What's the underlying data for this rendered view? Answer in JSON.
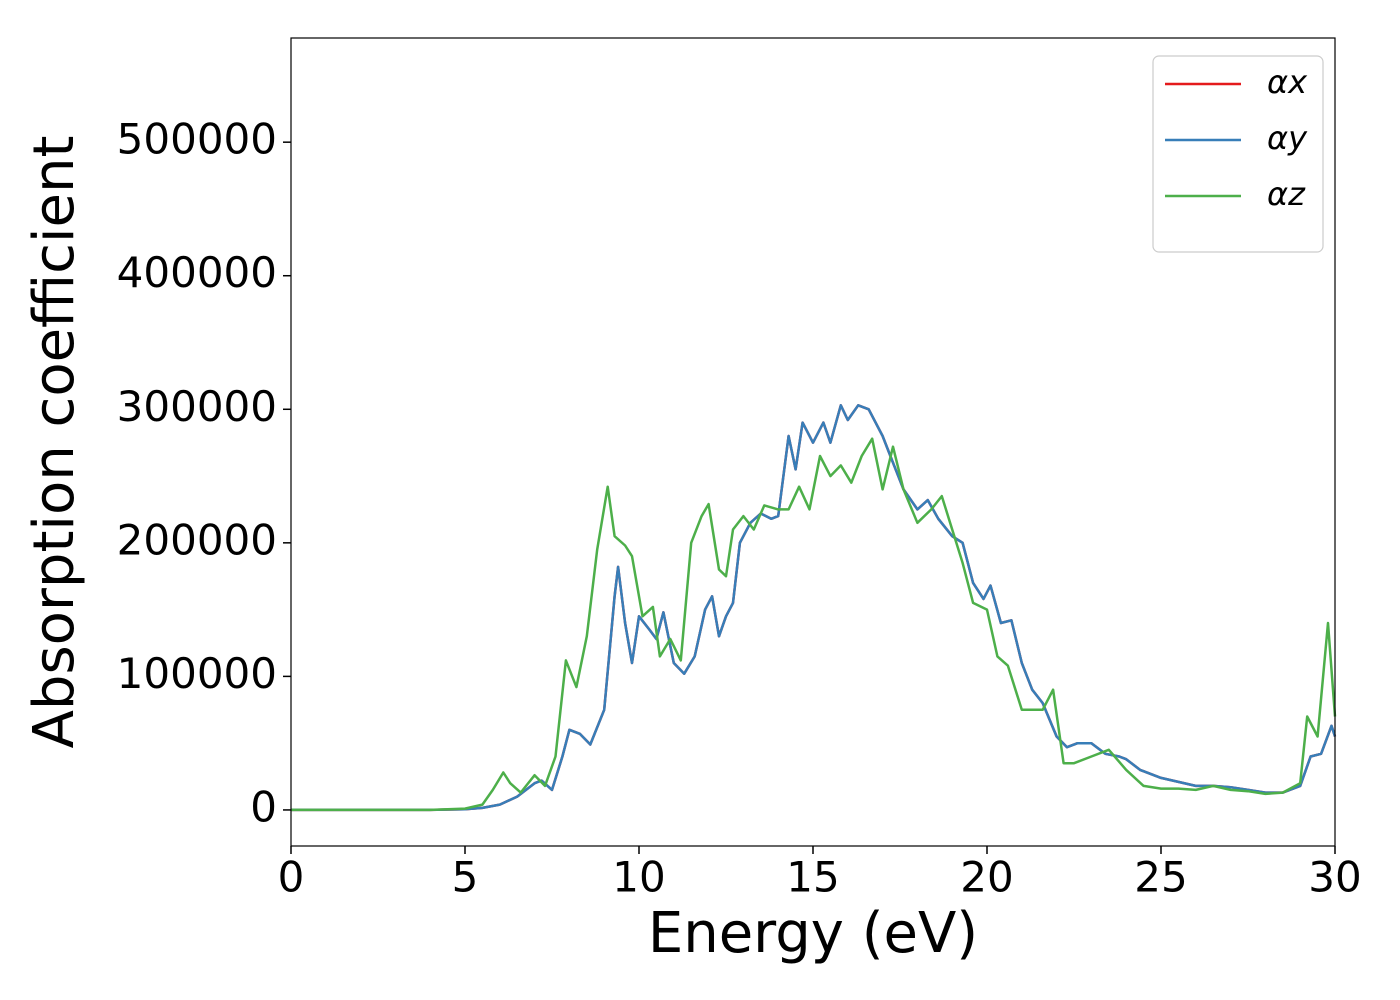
{
  "chart_data": {
    "type": "line",
    "xlabel": "Energy (eV)",
    "ylabel": "Absorption coefficient",
    "xlim": [
      0,
      30
    ],
    "xticks": [
      0,
      5,
      10,
      15,
      20,
      25,
      30
    ],
    "ylim": [
      -27000,
      578000
    ],
    "yticks": [
      0,
      100000,
      200000,
      300000,
      400000,
      500000
    ],
    "legend": "upper right",
    "grid": false,
    "series": [
      {
        "name": "αx",
        "color": "#e41a1c",
        "x": [
          0,
          1,
          2,
          3,
          4,
          5,
          5.5,
          6,
          6.5,
          7,
          7.2,
          7.5,
          7.8,
          8,
          8.3,
          8.6,
          9,
          9.3,
          9.4,
          9.6,
          9.8,
          10,
          10.3,
          10.5,
          10.7,
          11,
          11.3,
          11.6,
          11.9,
          12.1,
          12.3,
          12.5,
          12.7,
          12.9,
          13.2,
          13.5,
          13.8,
          14,
          14.3,
          14.5,
          14.7,
          15,
          15.3,
          15.5,
          15.8,
          16,
          16.3,
          16.6,
          17,
          17.3,
          17.6,
          18,
          18.3,
          18.6,
          19,
          19.3,
          19.6,
          19.9,
          20.1,
          20.4,
          20.7,
          21,
          21.3,
          21.6,
          22,
          22.3,
          22.6,
          23,
          23.4,
          23.8,
          24,
          24.4,
          25,
          25.5,
          26,
          26.5,
          27,
          27.5,
          28,
          28.5,
          29,
          29.3,
          29.6,
          29.9,
          30
        ],
        "values": [
          0,
          0,
          0,
          0,
          0,
          500,
          1500,
          4000,
          10000,
          20000,
          22000,
          15000,
          40000,
          60000,
          57000,
          49000,
          75000,
          160000,
          182000,
          140000,
          110000,
          145000,
          135000,
          128000,
          148000,
          110000,
          102000,
          115000,
          150000,
          160000,
          130000,
          145000,
          155000,
          200000,
          215000,
          222000,
          218000,
          220000,
          280000,
          255000,
          290000,
          275000,
          290000,
          275000,
          303000,
          292000,
          303000,
          300000,
          280000,
          260000,
          240000,
          225000,
          232000,
          218000,
          205000,
          200000,
          170000,
          158000,
          168000,
          140000,
          142000,
          110000,
          90000,
          80000,
          55000,
          47000,
          50000,
          50000,
          42000,
          40000,
          38000,
          30000,
          24000,
          21000,
          18000,
          18000,
          17000,
          15000,
          13000,
          13000,
          18000,
          40000,
          42000,
          63000,
          55000
        ]
      },
      {
        "name": "αy",
        "color": "#377eb8",
        "x": [
          0,
          1,
          2,
          3,
          4,
          5,
          5.5,
          6,
          6.5,
          7,
          7.2,
          7.5,
          7.8,
          8,
          8.3,
          8.6,
          9,
          9.3,
          9.4,
          9.6,
          9.8,
          10,
          10.3,
          10.5,
          10.7,
          11,
          11.3,
          11.6,
          11.9,
          12.1,
          12.3,
          12.5,
          12.7,
          12.9,
          13.2,
          13.5,
          13.8,
          14,
          14.3,
          14.5,
          14.7,
          15,
          15.3,
          15.5,
          15.8,
          16,
          16.3,
          16.6,
          17,
          17.3,
          17.6,
          18,
          18.3,
          18.6,
          19,
          19.3,
          19.6,
          19.9,
          20.1,
          20.4,
          20.7,
          21,
          21.3,
          21.6,
          22,
          22.3,
          22.6,
          23,
          23.4,
          23.8,
          24,
          24.4,
          25,
          25.5,
          26,
          26.5,
          27,
          27.5,
          28,
          28.5,
          29,
          29.3,
          29.6,
          29.9,
          30
        ],
        "values": [
          0,
          0,
          0,
          0,
          0,
          500,
          1500,
          4000,
          10000,
          20000,
          22000,
          15000,
          40000,
          60000,
          57000,
          49000,
          75000,
          160000,
          182000,
          140000,
          110000,
          145000,
          135000,
          128000,
          148000,
          110000,
          102000,
          115000,
          150000,
          160000,
          130000,
          145000,
          155000,
          200000,
          215000,
          222000,
          218000,
          220000,
          280000,
          255000,
          290000,
          275000,
          290000,
          275000,
          303000,
          292000,
          303000,
          300000,
          280000,
          260000,
          240000,
          225000,
          232000,
          218000,
          205000,
          200000,
          170000,
          158000,
          168000,
          140000,
          142000,
          110000,
          90000,
          80000,
          55000,
          47000,
          50000,
          50000,
          42000,
          40000,
          38000,
          30000,
          24000,
          21000,
          18000,
          18000,
          17000,
          15000,
          13000,
          13000,
          18000,
          40000,
          42000,
          63000,
          55000
        ]
      },
      {
        "name": "αz",
        "color": "#4daf4a",
        "x": [
          0,
          1,
          2,
          3,
          4,
          5,
          5.5,
          5.8,
          6.1,
          6.3,
          6.6,
          7,
          7.3,
          7.6,
          7.9,
          8.2,
          8.5,
          8.8,
          9.1,
          9.3,
          9.6,
          9.8,
          10.1,
          10.4,
          10.6,
          10.9,
          11.2,
          11.5,
          11.8,
          12,
          12.3,
          12.5,
          12.7,
          13,
          13.3,
          13.6,
          14,
          14.3,
          14.6,
          14.9,
          15.2,
          15.5,
          15.8,
          16.1,
          16.4,
          16.7,
          17,
          17.3,
          17.6,
          18,
          18.4,
          18.7,
          19,
          19.3,
          19.6,
          20,
          20.3,
          20.6,
          21,
          21.3,
          21.6,
          21.9,
          22.2,
          22.5,
          23,
          23.5,
          24,
          24.5,
          25,
          25.5,
          26,
          26.5,
          27,
          27.5,
          28,
          28.5,
          29,
          29.2,
          29.5,
          29.8,
          30
        ],
        "values": [
          0,
          0,
          0,
          0,
          0,
          1000,
          4000,
          15000,
          28000,
          20000,
          13000,
          26000,
          18000,
          40000,
          112000,
          92000,
          130000,
          195000,
          242000,
          205000,
          198000,
          190000,
          145000,
          152000,
          115000,
          128000,
          112000,
          200000,
          220000,
          229000,
          180000,
          175000,
          210000,
          220000,
          210000,
          228000,
          225000,
          225000,
          242000,
          225000,
          265000,
          250000,
          258000,
          245000,
          265000,
          278000,
          240000,
          272000,
          240000,
          215000,
          225000,
          235000,
          210000,
          185000,
          155000,
          150000,
          115000,
          108000,
          75000,
          75000,
          75000,
          90000,
          35000,
          35000,
          40000,
          45000,
          30000,
          18000,
          16000,
          16000,
          15000,
          18000,
          15000,
          14000,
          12000,
          13000,
          20000,
          70000,
          55000,
          140000,
          70000
        ]
      }
    ]
  }
}
